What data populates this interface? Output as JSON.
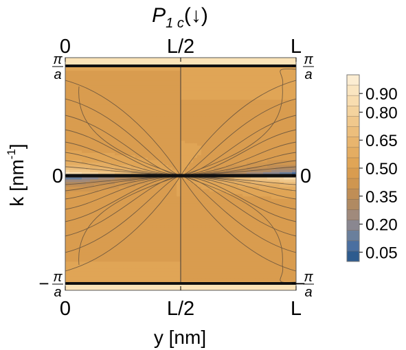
{
  "chart_data": {
    "type": "heatmap",
    "title": "P",
    "title_subscript": "1 c",
    "title_suffix": "(↓)",
    "xlabel": "y [nm]",
    "ylabel_main": "k [nm",
    "ylabel_sup": "-1",
    "ylabel_end": "]",
    "x_ticks": [
      "0",
      "L/2",
      "L"
    ],
    "y_ticks": [
      {
        "label": "π/a",
        "num": "π",
        "den": "a",
        "sign": "",
        "value": 1
      },
      {
        "label": "0",
        "num": "",
        "den": "",
        "sign": "",
        "value": 0
      },
      {
        "label": "-π/a",
        "num": "π",
        "den": "a",
        "sign": "−",
        "value": -1
      }
    ],
    "colorbar": {
      "ticks": [
        "0.90",
        "0.80",
        "0.65",
        "0.50",
        "0.35",
        "0.20",
        "0.05"
      ],
      "tick_values": [
        0.9,
        0.8,
        0.65,
        0.5,
        0.35,
        0.2,
        0.05
      ],
      "range": [
        0.0,
        1.0
      ],
      "levels": 20,
      "colors": [
        "#2e5b8e",
        "#4a6fa0",
        "#6a7f9c",
        "#8a8790",
        "#a08a7c",
        "#b08a62",
        "#c08e56",
        "#cf9650",
        "#d99c4f",
        "#e0a556",
        "#e4ad62",
        "#e8b56e",
        "#ecbe7c",
        "#f0c88c",
        "#f4d39e",
        "#f8ddb0",
        "#fae5c0",
        "#fcedd2"
      ]
    },
    "description_values": {
      "center_value": 0.48,
      "band_edge_value": 0.5,
      "min_value": 0.0,
      "max_value": 0.95
    }
  }
}
